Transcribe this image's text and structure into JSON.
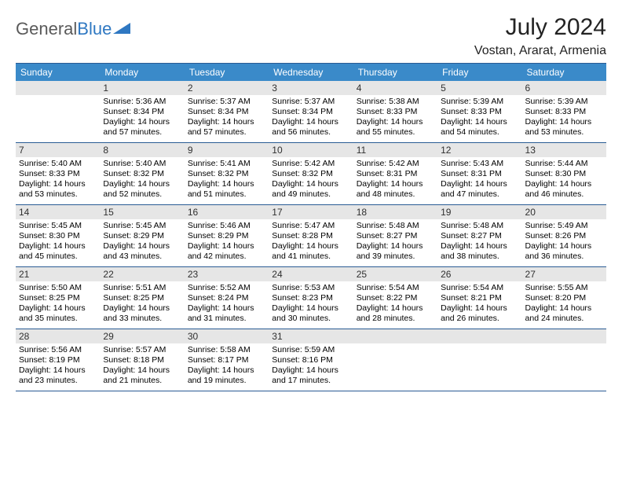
{
  "logo": {
    "text1": "General",
    "text2": "Blue"
  },
  "title": "July 2024",
  "location": "Vostan, Ararat, Armenia",
  "colors": {
    "header_bg": "#3a8ac9",
    "header_text": "#ffffff",
    "border": "#295b94",
    "daynum_bg": "#e6e6e6",
    "logo_gray": "#5a5a5a",
    "logo_blue": "#2f78c2"
  },
  "day_headers": [
    "Sunday",
    "Monday",
    "Tuesday",
    "Wednesday",
    "Thursday",
    "Friday",
    "Saturday"
  ],
  "weeks": [
    [
      {
        "num": "",
        "lines": []
      },
      {
        "num": "1",
        "lines": [
          "Sunrise: 5:36 AM",
          "Sunset: 8:34 PM",
          "Daylight: 14 hours and 57 minutes."
        ]
      },
      {
        "num": "2",
        "lines": [
          "Sunrise: 5:37 AM",
          "Sunset: 8:34 PM",
          "Daylight: 14 hours and 57 minutes."
        ]
      },
      {
        "num": "3",
        "lines": [
          "Sunrise: 5:37 AM",
          "Sunset: 8:34 PM",
          "Daylight: 14 hours and 56 minutes."
        ]
      },
      {
        "num": "4",
        "lines": [
          "Sunrise: 5:38 AM",
          "Sunset: 8:33 PM",
          "Daylight: 14 hours and 55 minutes."
        ]
      },
      {
        "num": "5",
        "lines": [
          "Sunrise: 5:39 AM",
          "Sunset: 8:33 PM",
          "Daylight: 14 hours and 54 minutes."
        ]
      },
      {
        "num": "6",
        "lines": [
          "Sunrise: 5:39 AM",
          "Sunset: 8:33 PM",
          "Daylight: 14 hours and 53 minutes."
        ]
      }
    ],
    [
      {
        "num": "7",
        "lines": [
          "Sunrise: 5:40 AM",
          "Sunset: 8:33 PM",
          "Daylight: 14 hours and 53 minutes."
        ]
      },
      {
        "num": "8",
        "lines": [
          "Sunrise: 5:40 AM",
          "Sunset: 8:32 PM",
          "Daylight: 14 hours and 52 minutes."
        ]
      },
      {
        "num": "9",
        "lines": [
          "Sunrise: 5:41 AM",
          "Sunset: 8:32 PM",
          "Daylight: 14 hours and 51 minutes."
        ]
      },
      {
        "num": "10",
        "lines": [
          "Sunrise: 5:42 AM",
          "Sunset: 8:32 PM",
          "Daylight: 14 hours and 49 minutes."
        ]
      },
      {
        "num": "11",
        "lines": [
          "Sunrise: 5:42 AM",
          "Sunset: 8:31 PM",
          "Daylight: 14 hours and 48 minutes."
        ]
      },
      {
        "num": "12",
        "lines": [
          "Sunrise: 5:43 AM",
          "Sunset: 8:31 PM",
          "Daylight: 14 hours and 47 minutes."
        ]
      },
      {
        "num": "13",
        "lines": [
          "Sunrise: 5:44 AM",
          "Sunset: 8:30 PM",
          "Daylight: 14 hours and 46 minutes."
        ]
      }
    ],
    [
      {
        "num": "14",
        "lines": [
          "Sunrise: 5:45 AM",
          "Sunset: 8:30 PM",
          "Daylight: 14 hours and 45 minutes."
        ]
      },
      {
        "num": "15",
        "lines": [
          "Sunrise: 5:45 AM",
          "Sunset: 8:29 PM",
          "Daylight: 14 hours and 43 minutes."
        ]
      },
      {
        "num": "16",
        "lines": [
          "Sunrise: 5:46 AM",
          "Sunset: 8:29 PM",
          "Daylight: 14 hours and 42 minutes."
        ]
      },
      {
        "num": "17",
        "lines": [
          "Sunrise: 5:47 AM",
          "Sunset: 8:28 PM",
          "Daylight: 14 hours and 41 minutes."
        ]
      },
      {
        "num": "18",
        "lines": [
          "Sunrise: 5:48 AM",
          "Sunset: 8:27 PM",
          "Daylight: 14 hours and 39 minutes."
        ]
      },
      {
        "num": "19",
        "lines": [
          "Sunrise: 5:48 AM",
          "Sunset: 8:27 PM",
          "Daylight: 14 hours and 38 minutes."
        ]
      },
      {
        "num": "20",
        "lines": [
          "Sunrise: 5:49 AM",
          "Sunset: 8:26 PM",
          "Daylight: 14 hours and 36 minutes."
        ]
      }
    ],
    [
      {
        "num": "21",
        "lines": [
          "Sunrise: 5:50 AM",
          "Sunset: 8:25 PM",
          "Daylight: 14 hours and 35 minutes."
        ]
      },
      {
        "num": "22",
        "lines": [
          "Sunrise: 5:51 AM",
          "Sunset: 8:25 PM",
          "Daylight: 14 hours and 33 minutes."
        ]
      },
      {
        "num": "23",
        "lines": [
          "Sunrise: 5:52 AM",
          "Sunset: 8:24 PM",
          "Daylight: 14 hours and 31 minutes."
        ]
      },
      {
        "num": "24",
        "lines": [
          "Sunrise: 5:53 AM",
          "Sunset: 8:23 PM",
          "Daylight: 14 hours and 30 minutes."
        ]
      },
      {
        "num": "25",
        "lines": [
          "Sunrise: 5:54 AM",
          "Sunset: 8:22 PM",
          "Daylight: 14 hours and 28 minutes."
        ]
      },
      {
        "num": "26",
        "lines": [
          "Sunrise: 5:54 AM",
          "Sunset: 8:21 PM",
          "Daylight: 14 hours and 26 minutes."
        ]
      },
      {
        "num": "27",
        "lines": [
          "Sunrise: 5:55 AM",
          "Sunset: 8:20 PM",
          "Daylight: 14 hours and 24 minutes."
        ]
      }
    ],
    [
      {
        "num": "28",
        "lines": [
          "Sunrise: 5:56 AM",
          "Sunset: 8:19 PM",
          "Daylight: 14 hours and 23 minutes."
        ]
      },
      {
        "num": "29",
        "lines": [
          "Sunrise: 5:57 AM",
          "Sunset: 8:18 PM",
          "Daylight: 14 hours and 21 minutes."
        ]
      },
      {
        "num": "30",
        "lines": [
          "Sunrise: 5:58 AM",
          "Sunset: 8:17 PM",
          "Daylight: 14 hours and 19 minutes."
        ]
      },
      {
        "num": "31",
        "lines": [
          "Sunrise: 5:59 AM",
          "Sunset: 8:16 PM",
          "Daylight: 14 hours and 17 minutes."
        ]
      },
      {
        "num": "",
        "lines": []
      },
      {
        "num": "",
        "lines": []
      },
      {
        "num": "",
        "lines": []
      }
    ]
  ]
}
